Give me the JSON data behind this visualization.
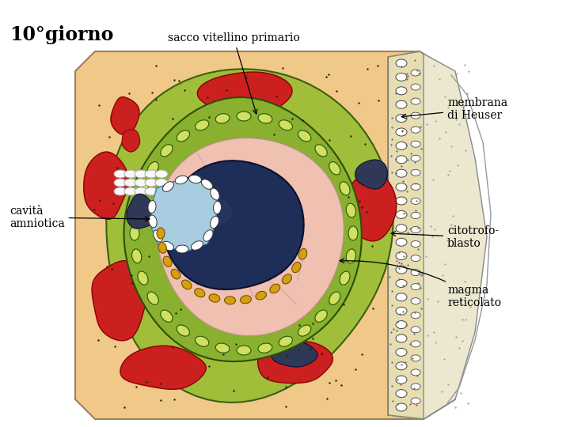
{
  "title": "10°giorno",
  "labels": {
    "sacco_vitellino": "sacco vitellino primario",
    "membrana_heuser": "membrana\ndi Heuser",
    "cavita_amniotica": "cavità\namniotica",
    "citotrofoblasto": "citotrofo-\nblasto",
    "magma_reticolato": "magma\nreticolato"
  },
  "colors": {
    "background": "#ffffff",
    "outer_tissue": "#f0c888",
    "cyto_strip": "#e8ddb0",
    "green_outer": "#a0be3a",
    "green_inner": "#8ab030",
    "red_blood": "#cc2020",
    "dark_blue_embryo": "#1e2e58",
    "light_blue_amnion": "#a8cce0",
    "pink_center": "#f0c0b0",
    "cell_fill": "#d0e060",
    "gold_cell": "#d4a010",
    "white_villous": "#f8f8f8",
    "dark_blue_sinus": "#303858"
  },
  "fig_width": 7.2,
  "fig_height": 5.4,
  "dpi": 100
}
